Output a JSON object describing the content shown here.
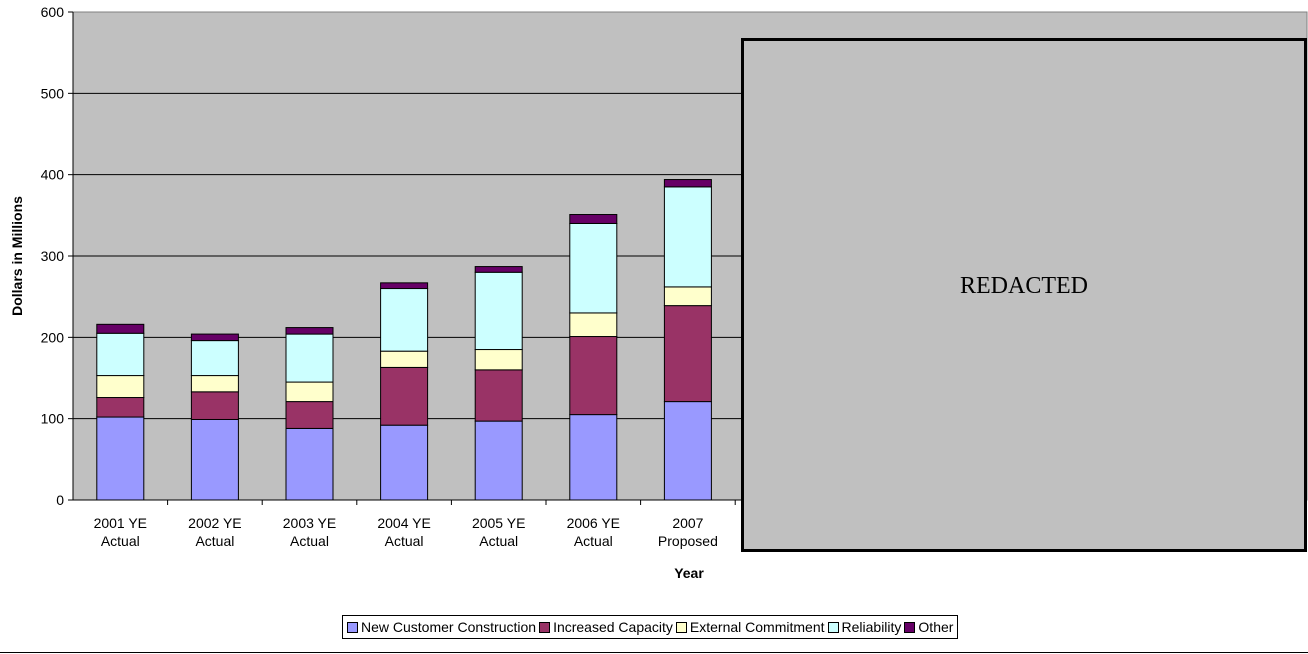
{
  "chart_data": {
    "type": "bar",
    "stacked": true,
    "categories": [
      [
        "2001 YE",
        "Actual"
      ],
      [
        "2002 YE",
        "Actual"
      ],
      [
        "2003 YE",
        "Actual"
      ],
      [
        "2004 YE",
        "Actual"
      ],
      [
        "2005 YE",
        "Actual"
      ],
      [
        "2006 YE",
        "Actual"
      ],
      [
        "2007",
        "Proposed"
      ]
    ],
    "series": [
      {
        "name": "New Customer Construction",
        "color": "#9999ff",
        "values": [
          102,
          99,
          88,
          92,
          97,
          105,
          121
        ]
      },
      {
        "name": "Increased Capacity",
        "color": "#993366",
        "values": [
          24,
          34,
          33,
          71,
          63,
          96,
          118
        ]
      },
      {
        "name": "External Commitment",
        "color": "#ffffcc",
        "values": [
          27,
          20,
          24,
          20,
          25,
          29,
          23
        ]
      },
      {
        "name": "Reliability",
        "color": "#ccffff",
        "values": [
          52,
          43,
          59,
          77,
          95,
          110,
          123
        ]
      },
      {
        "name": "Other",
        "color": "#660066",
        "values": [
          11,
          8,
          8,
          7,
          7,
          11,
          9
        ]
      }
    ],
    "xlabel": "Year",
    "ylabel": "Dollars in Millions",
    "ylim": [
      0,
      600
    ],
    "yticks": [
      0,
      100,
      200,
      300,
      400,
      500,
      600
    ],
    "grid": true,
    "legend_position": "bottom",
    "plot_background": "#c0c0c0"
  },
  "redaction_label": "REDACTED"
}
